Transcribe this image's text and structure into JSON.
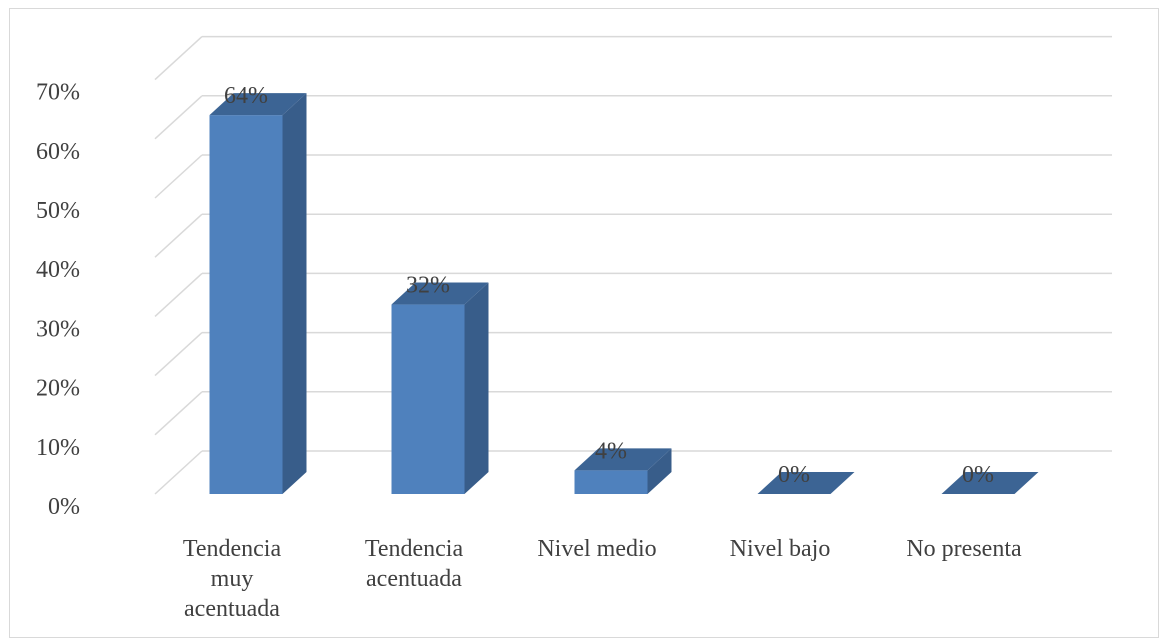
{
  "chart_data": {
    "type": "bar",
    "style": "3d-column",
    "title": "",
    "xlabel": "",
    "ylabel": "",
    "categories": [
      [
        "Tendencia",
        "muy",
        "acentuada"
      ],
      [
        "Tendencia",
        "acentuada"
      ],
      [
        "Nivel medio"
      ],
      [
        "Nivel bajo"
      ],
      [
        "No presenta"
      ]
    ],
    "values": [
      64,
      32,
      4,
      0,
      0
    ],
    "value_labels": [
      "64%",
      "32%",
      "4%",
      "0%",
      "0%"
    ],
    "yticks": [
      "0%",
      "10%",
      "20%",
      "30%",
      "40%",
      "50%",
      "60%",
      "70%"
    ],
    "ylim": [
      0,
      70
    ],
    "grid": true,
    "legend": "none",
    "colors": {
      "bar_front": "#4f81bd",
      "bar_side": "#385d8a",
      "bar_top": "#3c6494",
      "grid": "#d9d9d9",
      "text": "#404040"
    }
  }
}
